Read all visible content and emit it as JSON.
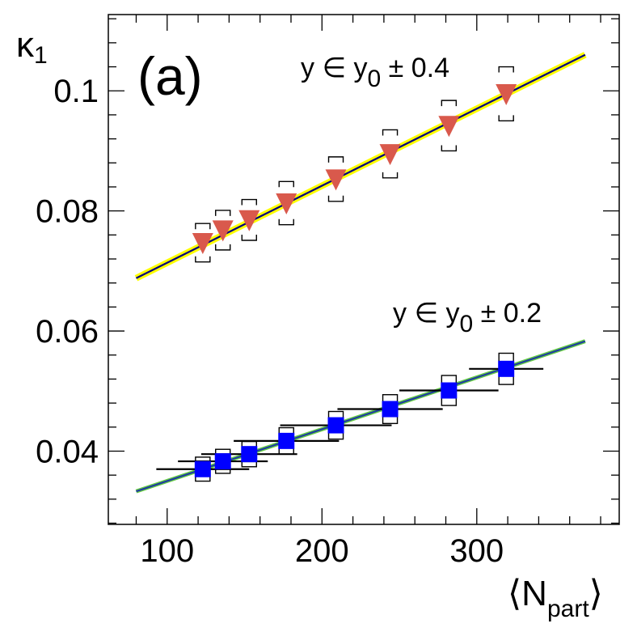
{
  "chart_data": {
    "type": "scatter",
    "panel_label": "(a)",
    "xlabel": "⟨N",
    "xlabel_sub": "part",
    "xlabel_close": "⟩",
    "ylabel": "κ",
    "ylabel_sub": "1",
    "xlim": [
      62,
      392
    ],
    "ylim": [
      0.0278,
      0.1127
    ],
    "x_ticks": [
      100,
      200,
      300
    ],
    "x_tick_labels": [
      "100",
      "200",
      "300"
    ],
    "y_ticks": [
      0.04,
      0.06,
      0.08,
      0.1
    ],
    "y_tick_labels": [
      "0.04",
      "0.06",
      "0.08",
      "0.1"
    ],
    "series": [
      {
        "name": "y ∈ y0 ± 0.4",
        "label_parts": [
          "y ∈ y",
          "0",
          " ± 0.4"
        ],
        "marker": "triangle-down",
        "color": "#d9594c",
        "band_color": "#ffff00",
        "fit_color": "#000080",
        "fit": {
          "x": [
            80,
            370
          ],
          "y": [
            0.0688,
            0.106
          ]
        },
        "x": [
          123,
          136,
          153,
          177,
          209,
          244,
          282,
          319
        ],
        "y": [
          0.0747,
          0.0768,
          0.0785,
          0.0813,
          0.0853,
          0.0895,
          0.0942,
          0.0995
        ],
        "x_err": [
          0,
          0,
          0,
          0,
          0,
          0,
          0,
          0
        ],
        "sys_err": [
          0.0032,
          0.0033,
          0.0034,
          0.0036,
          0.0037,
          0.004,
          0.0042,
          0.0045
        ]
      },
      {
        "name": "y ∈ y0 ± 0.2",
        "label_parts": [
          "y ∈ y",
          "0",
          " ± 0.2"
        ],
        "marker": "square",
        "color": "#0000ff",
        "band_color": "#66cc44",
        "fit_color": "#1f3d9f",
        "fit": {
          "x": [
            80,
            370
          ],
          "y": [
            0.0333,
            0.0583
          ]
        },
        "x": [
          123,
          136,
          153,
          177,
          209,
          244,
          282,
          319
        ],
        "y": [
          0.037,
          0.0383,
          0.0395,
          0.0417,
          0.0443,
          0.047,
          0.0501,
          0.0537
        ],
        "x_err": [
          30,
          29,
          31,
          34,
          36,
          34,
          32,
          24
        ],
        "sys_err": [
          0.002,
          0.002,
          0.0021,
          0.0022,
          0.0023,
          0.0024,
          0.0025,
          0.0026
        ]
      }
    ]
  }
}
